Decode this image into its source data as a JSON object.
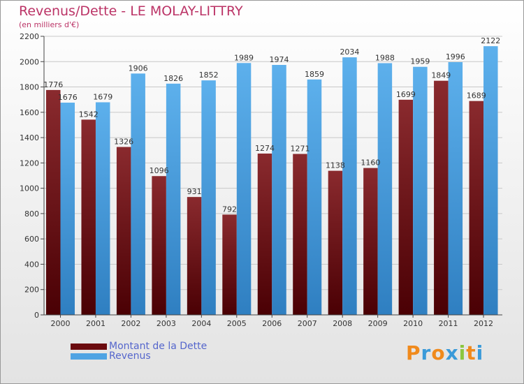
{
  "chart_data": {
    "type": "bar",
    "title": "Revenus/Dette - LE MOLAY-LITTRY",
    "subtitle": "(en milliers d'€)",
    "categories": [
      "2000",
      "2001",
      "2002",
      "2003",
      "2004",
      "2005",
      "2006",
      "2007",
      "2008",
      "2009",
      "2010",
      "2011",
      "2012"
    ],
    "series": [
      {
        "name": "Montant de la Dette",
        "color": "#7a1f23",
        "values": [
          1776,
          1542,
          1326,
          1096,
          931,
          792,
          1274,
          1271,
          1138,
          1160,
          1699,
          1849,
          1689
        ],
        "labels": [
          "1776",
          "1542",
          "1326",
          "1096",
          "931",
          "792",
          "1274",
          "1271",
          "1138",
          "1160",
          "1699",
          "1849",
          "1689"
        ]
      },
      {
        "name": "Revenus",
        "color": "#4fa3e3",
        "values": [
          1676,
          1679,
          1906,
          1826,
          1852,
          1989,
          1974,
          1859,
          2034,
          1988,
          1959,
          1996,
          2122
        ],
        "labels": [
          "1676",
          "1679",
          "1906",
          "1826",
          "1852",
          "1989",
          "1974",
          "1859",
          "2034",
          "1988",
          "1959",
          "1996",
          "2122"
        ]
      }
    ],
    "ylim": [
      0,
      2200
    ],
    "yticks": [
      0,
      200,
      400,
      600,
      800,
      1000,
      1200,
      1400,
      1600,
      1800,
      2000,
      2200
    ],
    "ytick_labels": [
      "0",
      "200",
      "400",
      "600",
      "800",
      "1000",
      "1200",
      "1400",
      "1600",
      "1800",
      "2000",
      "2200"
    ],
    "grid": true,
    "legend_position": "bottom-left"
  },
  "legend": {
    "items": [
      {
        "label": "Montant de la Dette",
        "color": "#6a0a0e"
      },
      {
        "label": "Revenus",
        "color": "#4fa3e3"
      }
    ]
  },
  "logo": {
    "letters": [
      "P",
      "r",
      "o",
      "x",
      "i",
      "t",
      "i"
    ],
    "colors": [
      "#f08a1c",
      "#3a9ad9",
      "#f08a1c",
      "#3a9ad9",
      "#8cc63f",
      "#f08a1c",
      "#3a9ad9"
    ]
  }
}
